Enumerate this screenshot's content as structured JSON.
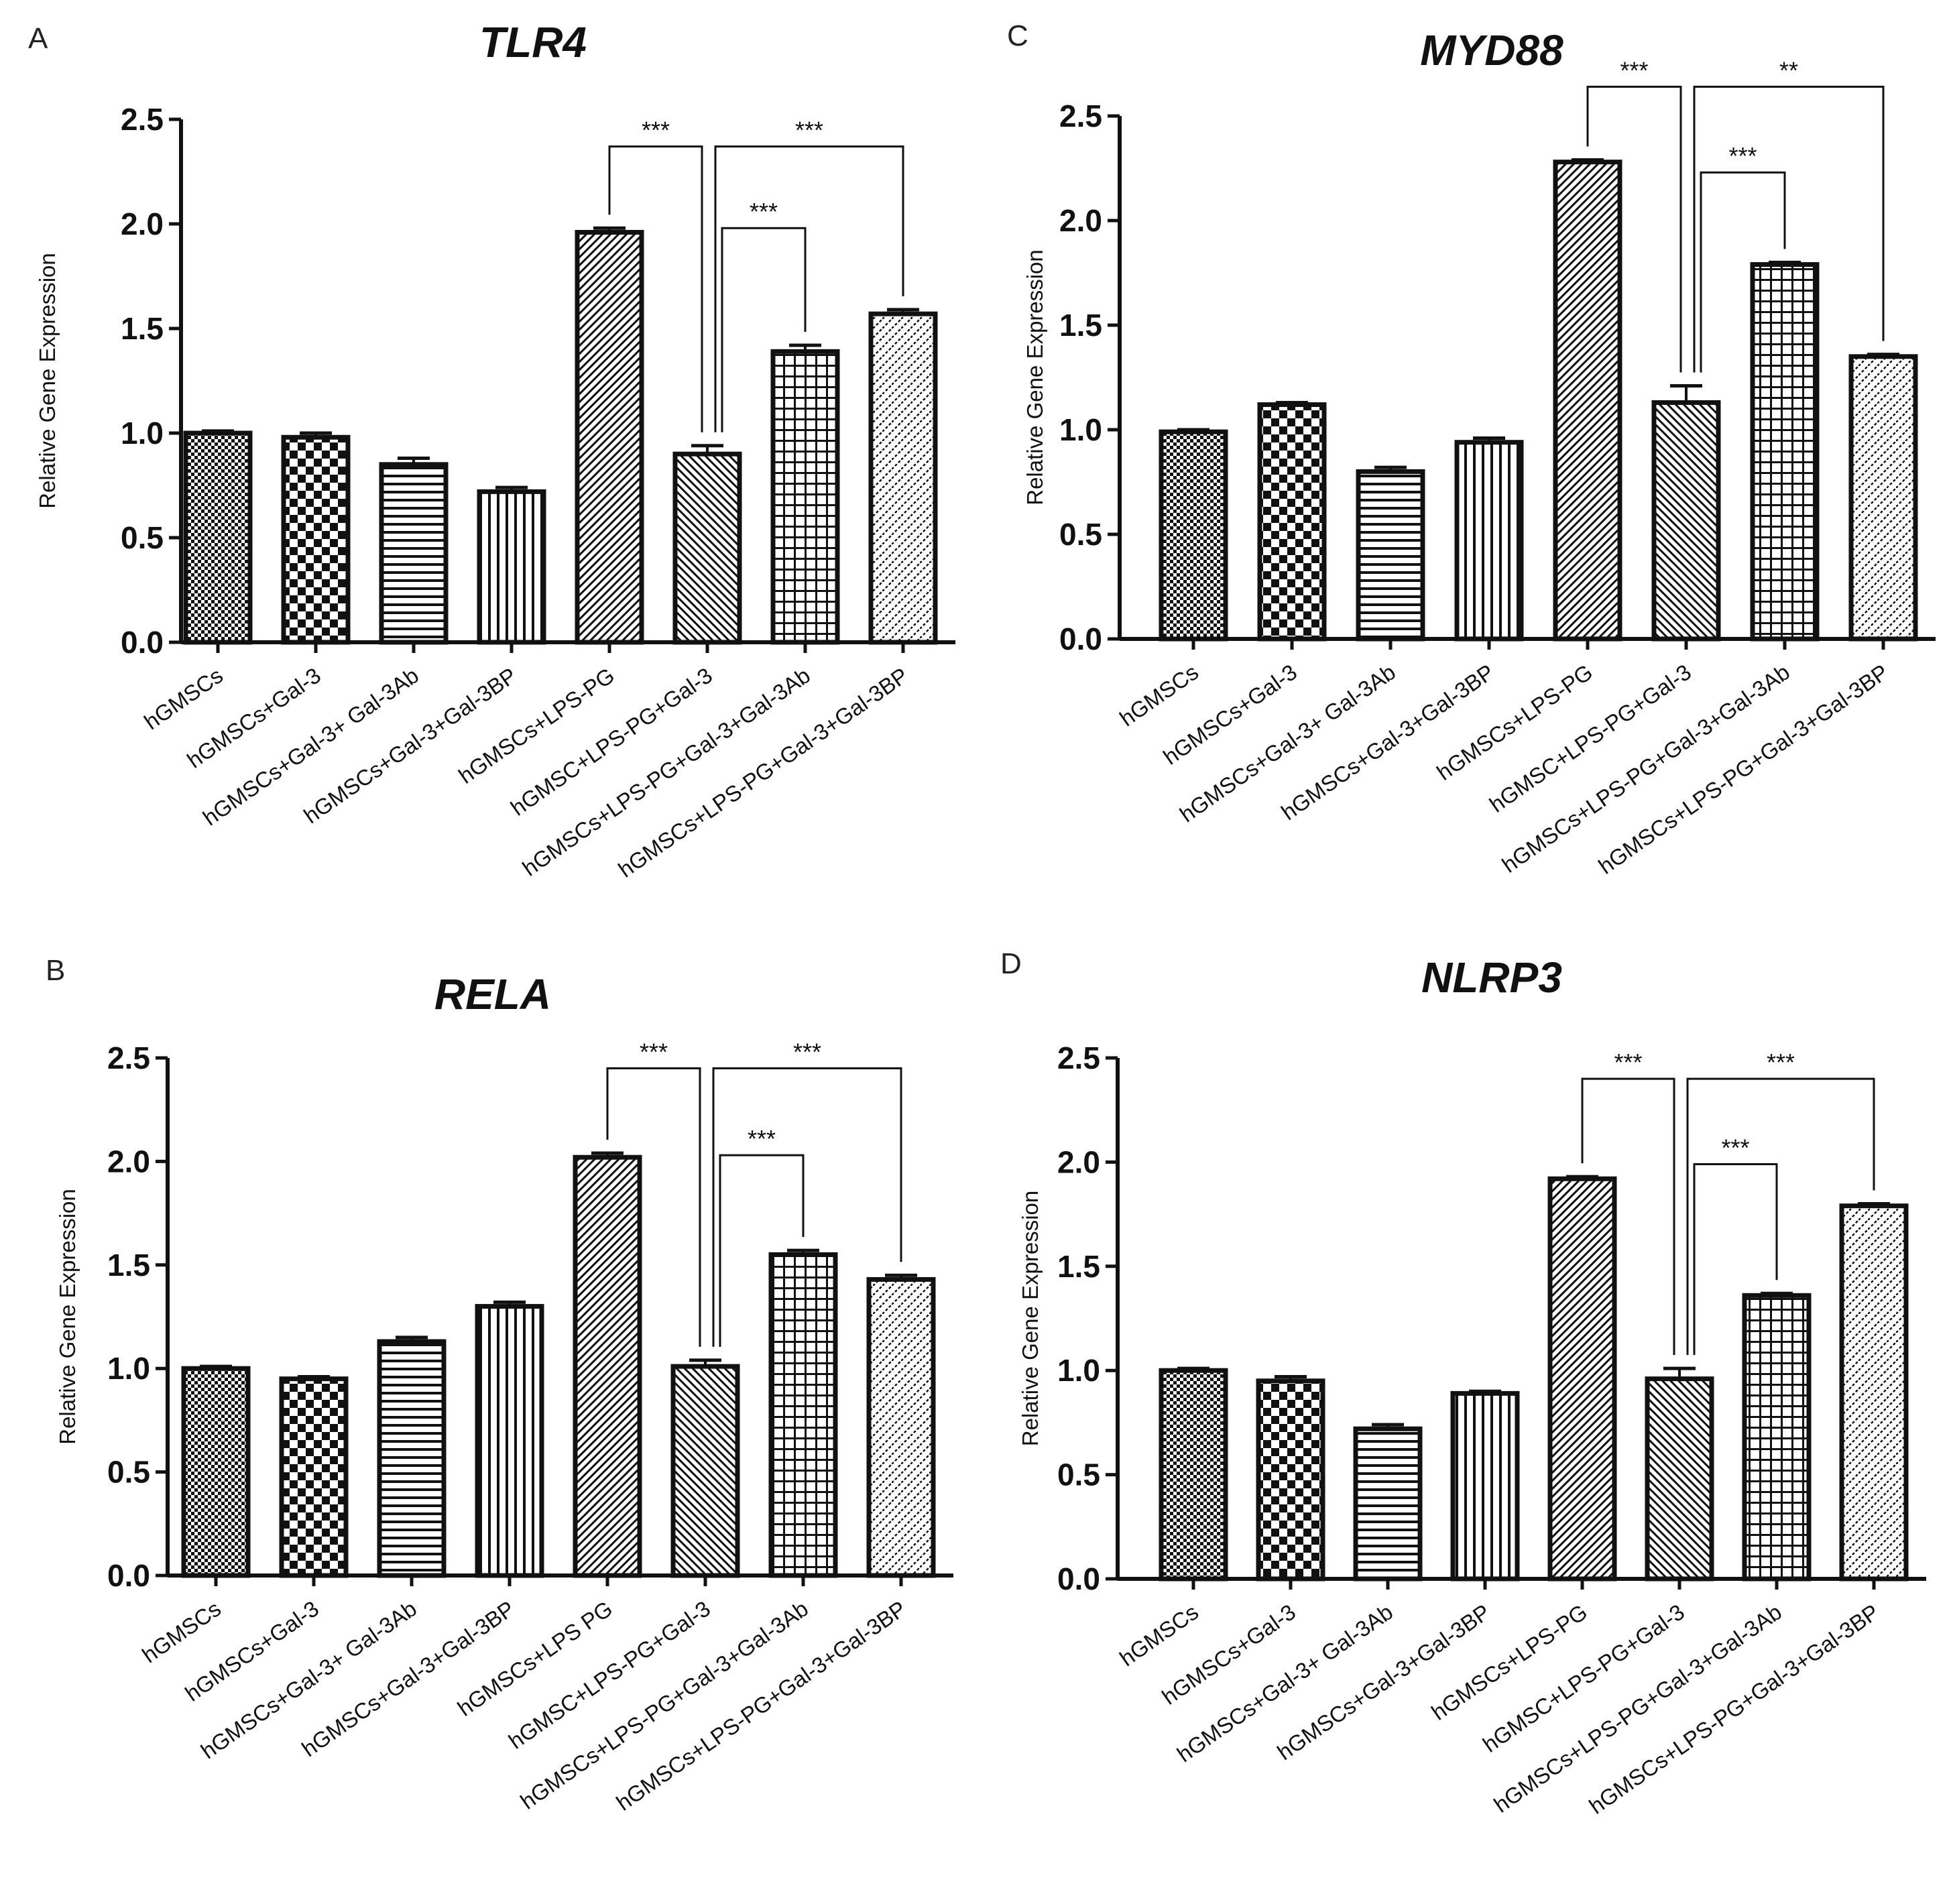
{
  "chart_data": [
    {
      "panel": "A",
      "type": "bar",
      "title": "TLR4",
      "ylabel": "Relative Gene Expression",
      "ylim": [
        0,
        2.5
      ],
      "yticks": [
        "0.0",
        "0.5",
        "1.0",
        "1.5",
        "2.0",
        "2.5"
      ],
      "categories": [
        "hGMSCs",
        "hGMSCs+Gal-3",
        "hGMSCs+Gal-3+ Gal-3Ab",
        "hGMSCs+Gal-3+Gal-3BP",
        "hGMSCs+LPS-PG",
        "hGMSC+LPS-PG+Gal-3",
        "hGMSCs+LPS-PG+Gal-3+Gal-3Ab",
        "hGMSCs+LPS-PG+Gal-3+Gal-3BP"
      ],
      "values": [
        1.0,
        0.98,
        0.85,
        0.72,
        1.96,
        0.9,
        1.39,
        1.57
      ],
      "errors": [
        0.01,
        0.02,
        0.03,
        0.02,
        0.02,
        0.04,
        0.03,
        0.02
      ],
      "significance": [
        {
          "from": 4,
          "to": 5,
          "label": "***",
          "y": 2.37
        },
        {
          "from": 5,
          "to": 7,
          "label": "***",
          "y": 2.37
        },
        {
          "from": 5,
          "to": 6,
          "label": "***",
          "y": 1.98
        }
      ]
    },
    {
      "panel": "B",
      "type": "bar",
      "title": "RELA",
      "ylabel": "Relative Gene Expression",
      "ylim": [
        0,
        2.5
      ],
      "yticks": [
        "0.0",
        "0.5",
        "1.0",
        "1.5",
        "2.0",
        "2.5"
      ],
      "categories": [
        "hGMSCs",
        "hGMSCs+Gal-3",
        "hGMSCs+Gal-3+ Gal-3Ab",
        "hGMSCs+Gal-3+Gal-3BP",
        "hGMSCs+LPS PG",
        "hGMSC+LPS-PG+Gal-3",
        "hGMSCs+LPS-PG+Gal-3+Gal-3Ab",
        "hGMSCs+LPS-PG+Gal-3+Gal-3BP"
      ],
      "values": [
        1.0,
        0.95,
        1.13,
        1.3,
        2.02,
        1.01,
        1.55,
        1.43
      ],
      "errors": [
        0.01,
        0.01,
        0.02,
        0.02,
        0.02,
        0.03,
        0.02,
        0.02
      ],
      "significance": [
        {
          "from": 4,
          "to": 5,
          "label": "***",
          "y": 2.45
        },
        {
          "from": 5,
          "to": 7,
          "label": "***",
          "y": 2.45
        },
        {
          "from": 5,
          "to": 6,
          "label": "***",
          "y": 2.03
        }
      ]
    },
    {
      "panel": "C",
      "type": "bar",
      "title": "MYD88",
      "ylabel": "Relative Gene Expression",
      "ylim": [
        0,
        2.5
      ],
      "yticks": [
        "0.0",
        "0.5",
        "1.0",
        "1.5",
        "2.0",
        "2.5"
      ],
      "categories": [
        "hGMSCs",
        "hGMSCs+Gal-3",
        "hGMSCs+Gal-3+ Gal-3Ab",
        "hGMSCs+Gal-3+Gal-3BP",
        "hGMSCs+LPS-PG",
        "hGMSC+LPS-PG+Gal-3",
        "hGMSCs+LPS-PG+Gal-3+Gal-3Ab",
        "hGMSCs+LPS-PG+Gal-3+Gal-3BP"
      ],
      "values": [
        0.99,
        1.12,
        0.8,
        0.94,
        2.28,
        1.13,
        1.79,
        1.35
      ],
      "errors": [
        0.01,
        0.01,
        0.02,
        0.02,
        0.01,
        0.08,
        0.01,
        0.01
      ],
      "significance": [
        {
          "from": 4,
          "to": 5,
          "label": "***",
          "y": 2.64
        },
        {
          "from": 5,
          "to": 7,
          "label": "**",
          "y": 2.64
        },
        {
          "from": 5,
          "to": 6,
          "label": "***",
          "y": 2.23
        }
      ]
    },
    {
      "panel": "D",
      "type": "bar",
      "title": "NLRP3",
      "ylabel": "Relative Gene Expression",
      "ylim": [
        0,
        2.5
      ],
      "yticks": [
        "0.0",
        "0.5",
        "1.0",
        "1.5",
        "2.0",
        "2.5"
      ],
      "categories": [
        "hGMSCs",
        "hGMSCs+Gal-3",
        "hGMSCs+Gal-3+ Gal-3Ab",
        "hGMSCs+Gal-3+Gal-3BP",
        "hGMSCs+LPS-PG",
        "hGMSC+LPS-PG+Gal-3",
        "hGMSCs+LPS-PG+Gal-3+Gal-3Ab",
        "hGMSCs+LPS-PG+Gal-3+Gal-3BP"
      ],
      "values": [
        1.0,
        0.95,
        0.72,
        0.89,
        1.92,
        0.96,
        1.36,
        1.79
      ],
      "errors": [
        0.01,
        0.02,
        0.02,
        0.01,
        0.01,
        0.05,
        0.01,
        0.01
      ],
      "significance": [
        {
          "from": 4,
          "to": 5,
          "label": "***",
          "y": 2.4
        },
        {
          "from": 5,
          "to": 7,
          "label": "***",
          "y": 2.4
        },
        {
          "from": 5,
          "to": 6,
          "label": "***",
          "y": 1.99
        }
      ]
    }
  ]
}
